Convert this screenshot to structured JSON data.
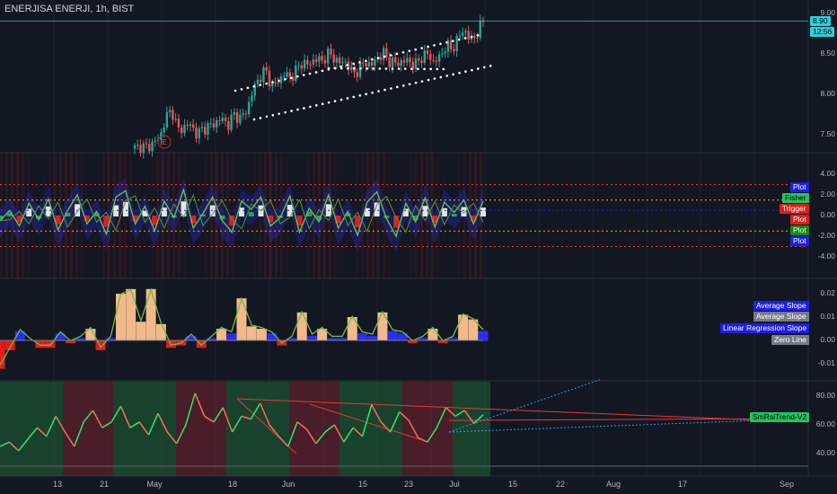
{
  "header": {
    "title": "ENERJISA ENERJI, 1h, BIST"
  },
  "price_scale": {
    "ticks": [
      "9.00",
      "8.50",
      "8.00",
      "7.50"
    ],
    "last_price": "8.90",
    "countdown": "12:56"
  },
  "pane2": {
    "ticks": [
      "4.00",
      "2.00",
      "0.00",
      "-2.00",
      "-4.00"
    ],
    "labels": [
      {
        "text": "Plot",
        "bg": "#1e1ee8",
        "fg": "#ffffff"
      },
      {
        "text": "Fisher",
        "bg": "#22c55e",
        "fg": "#000000"
      },
      {
        "text": "Trigger",
        "bg": "#e11d1d",
        "fg": "#ffffff"
      },
      {
        "text": "Plot",
        "bg": "#e11d1d",
        "fg": "#ffffff"
      },
      {
        "text": "Plot",
        "bg": "#138a13",
        "fg": "#ffffff"
      },
      {
        "text": "Plot",
        "bg": "#1e1ee8",
        "fg": "#ffffff"
      }
    ]
  },
  "pane3": {
    "ticks": [
      "0.02",
      "0.01",
      "0.00",
      "-0.01"
    ],
    "labels": [
      {
        "text": "Average Slope",
        "bg": "#1e1ee8",
        "fg": "#ffffff"
      },
      {
        "text": "Average Slope",
        "bg": "#787b86",
        "fg": "#ffffff"
      },
      {
        "text": "Linear Regression Slope",
        "bg": "#1e1ee8",
        "fg": "#ffffff"
      },
      {
        "text": "Zero Line",
        "bg": "#787b86",
        "fg": "#ffffff"
      }
    ]
  },
  "pane4": {
    "ticks": [
      "80.00",
      "60.00",
      "40.00"
    ],
    "label": {
      "text": "SmRsiTrend-V2",
      "bg": "#22c55e",
      "fg": "#000000"
    }
  },
  "x_axis": {
    "ticks": [
      "13",
      "21",
      "May",
      "18",
      "Jun",
      "15",
      "23",
      "Jul",
      "15",
      "22",
      "Aug",
      "17",
      "Sep"
    ]
  },
  "markers": {
    "earnings": "E"
  },
  "colors": {
    "bg": "#131722",
    "up": "#26a69a",
    "down": "#ef5350",
    "fisher": "#6abe45",
    "blue": "#2a2ef0",
    "tan": "#f2b98a",
    "red": "#e11d1d",
    "cyan": "#29d1e0",
    "dots": "#ffffff"
  },
  "chart_data": [
    {
      "type": "candlestick",
      "title": "ENERJISA ENERJI, 1h, BIST",
      "ylim": [
        7.3,
        9.05
      ],
      "x": [
        "13",
        "21",
        "May",
        "18",
        "Jun",
        "15",
        "23",
        "Jul"
      ],
      "close_path": [
        7.33,
        7.36,
        7.34,
        7.4,
        7.45,
        7.72,
        7.8,
        7.55,
        7.6,
        7.62,
        7.5,
        7.58,
        7.6,
        7.65,
        7.7,
        7.62,
        7.75,
        7.7,
        7.8,
        8.05,
        8.2,
        8.3,
        8.1,
        8.15,
        8.25,
        8.2,
        8.3,
        8.4,
        8.35,
        8.45,
        8.4,
        8.5,
        8.45,
        8.38,
        8.4,
        8.25,
        8.3,
        8.4,
        8.35,
        8.45,
        8.5,
        8.4,
        8.38,
        8.4,
        8.42,
        8.35,
        8.45,
        8.5,
        8.4,
        8.45,
        8.6,
        8.55,
        8.7,
        8.8,
        8.65,
        8.75,
        8.9
      ],
      "last": 8.9
    },
    {
      "type": "line",
      "series": [
        {
          "name": "Fisher",
          "values": [
            -0.5,
            0.5,
            -1,
            1.2,
            -0.4,
            1.6,
            -1.4,
            0.5,
            2,
            -0.8,
            0.4,
            -1.8,
            1.8,
            2.4,
            -0.8,
            0.9,
            -1.5,
            1.4,
            -0.2,
            2.5,
            -1.2,
            0.2,
            1.8,
            -0.5,
            -1.6,
            1.4,
            0.6,
            1.8,
            -1,
            -0.2,
            1.9,
            -1.6,
            0.7,
            -0.6,
            2,
            -1.2,
            0.4,
            -1.9,
            1.3,
            2.3,
            -0.3,
            -2,
            1.2,
            -0.6,
            1.7,
            -1.1,
            1.3,
            0.3,
            1.5,
            -0.8,
            1.4
          ]
        }
      ],
      "ylim": [
        -4,
        4
      ]
    },
    {
      "type": "area",
      "series": [
        {
          "name": "Linear Regression Slope",
          "values": [
            -0.012,
            -0.004,
            0.004,
            0,
            -0.003,
            -0.003,
            0.003,
            -0.001,
            0.001,
            0.005,
            -0.004,
            0.001,
            0.02,
            0.022,
            0.008,
            0.022,
            0.007,
            -0.003,
            -0.002,
            0.002,
            -0.003,
            0.001,
            0.005,
            0.003,
            0.018,
            0.006,
            0.005,
            0.003,
            -0.002,
            0.001,
            0.012,
            0.002,
            0.005,
            0.001,
            0.001,
            0.01,
            0.003,
            0.002,
            0.012,
            0.004,
            0.003,
            -0.001,
            0.001,
            0.005,
            -0.001,
            0.001,
            0.011,
            0.009,
            0.004
          ]
        }
      ],
      "ylim": [
        -0.015,
        0.025
      ]
    },
    {
      "type": "line",
      "series": [
        {
          "name": "SmRsiTrend-V2",
          "values": [
            45,
            48,
            42,
            50,
            58,
            52,
            66,
            55,
            45,
            62,
            70,
            58,
            62,
            73,
            58,
            62,
            53,
            68,
            55,
            47,
            60,
            82,
            66,
            62,
            72,
            55,
            66,
            64,
            75,
            60,
            52,
            45,
            62,
            57,
            47,
            55,
            60,
            48,
            58,
            52,
            74,
            62,
            55,
            69,
            63,
            51,
            48,
            58,
            72,
            66,
            70,
            61,
            67
          ]
        }
      ],
      "ylim": [
        30,
        90
      ]
    }
  ]
}
